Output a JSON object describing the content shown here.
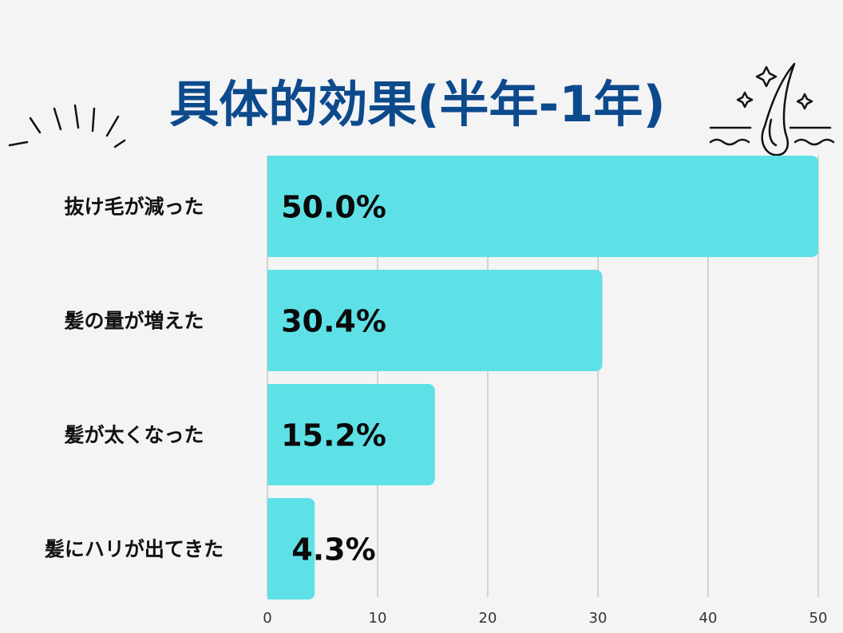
{
  "title": "具体的効果(半年-1年)",
  "colors": {
    "bar": "#5ee1e6",
    "title": "#0d4a8c",
    "grid": "#c8c8c8",
    "background": "#f4f4f5"
  },
  "decorations": {
    "left": "burst-lines-icon",
    "right": "hair-follicle-sparkle-icon"
  },
  "chart_data": {
    "type": "bar",
    "orientation": "horizontal",
    "title": "具体的効果(半年-1年)",
    "categories": [
      "抜け毛が減った",
      "髪の量が増えた",
      "髪が太くなった",
      "髪にハリが出てきた"
    ],
    "values": [
      50.0,
      30.4,
      15.2,
      4.3
    ],
    "value_labels": [
      "50.0%",
      "30.4%",
      "15.2%",
      "4.3%"
    ],
    "xlim": [
      0,
      50
    ],
    "xticks": [
      "0",
      "10",
      "20",
      "30",
      "40",
      "50"
    ],
    "xlabel": "",
    "ylabel": "",
    "grid": true,
    "legend": "none"
  }
}
